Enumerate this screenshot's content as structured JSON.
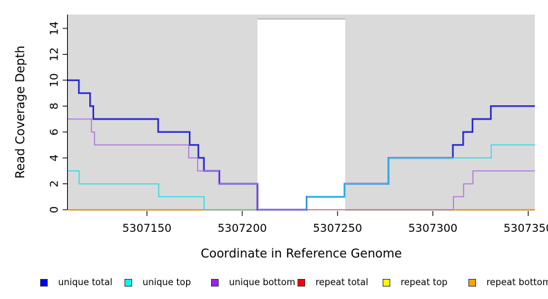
{
  "chart_data": {
    "type": "line",
    "subtype": "step-coverage",
    "title": "",
    "xlabel": "Coordinate in Reference Genome",
    "ylabel": "Read Coverage Depth",
    "xlim": [
      5307108.5,
      5307353.5
    ],
    "ylim": [
      0,
      15.07
    ],
    "x_ticks": [
      5307150,
      5307200,
      5307250,
      5307300,
      5307350
    ],
    "y_ticks": [
      0,
      2,
      4,
      6,
      8,
      10,
      12,
      14
    ],
    "grid": false,
    "legend_position": "bottom",
    "panel_bg": "#dadada",
    "axis_color": "#000000",
    "gap_region": {
      "x0": 5307208,
      "x1": 5307254,
      "fill": "#ffffff",
      "top_line_color": "#a6a6a6"
    },
    "legend": [
      {
        "label": "unique total",
        "color": "#0000f0"
      },
      {
        "label": "unique top",
        "color": "#00f5ff"
      },
      {
        "label": "unique bottom",
        "color": "#a21ff0"
      },
      {
        "label": "repeat total",
        "color": "#ff0000"
      },
      {
        "label": "repeat top",
        "color": "#fff600"
      },
      {
        "label": "repeat bottom",
        "color": "#ffa300"
      }
    ],
    "series": [
      {
        "name": "repeat-bottom-left",
        "legend": "repeat bottom",
        "color": "#ff9e00",
        "width": 2,
        "points": [
          [
            5307108.5,
            0
          ],
          [
            5307180,
            0
          ]
        ]
      },
      {
        "name": "baseline-green-segment",
        "legend": null,
        "color": "#5ec463",
        "width": 1.4,
        "points": [
          [
            5307180,
            0
          ],
          [
            5307208,
            0
          ]
        ]
      },
      {
        "name": "repeat-total-segment",
        "legend": "repeat total",
        "color": "#d4627a",
        "width": 1.4,
        "points": [
          [
            5307234,
            0
          ],
          [
            5307310.5,
            0
          ]
        ]
      },
      {
        "name": "repeat-bottom-right",
        "legend": "repeat bottom",
        "color": "#ff9e00",
        "width": 2,
        "points": [
          [
            5307310.5,
            0
          ],
          [
            5307353.5,
            0
          ]
        ]
      },
      {
        "name": "unique-total",
        "legend": "unique total",
        "color": "#2929d4",
        "width": 2.4,
        "points": [
          [
            5307108.5,
            10
          ],
          [
            5307114.3,
            10
          ],
          [
            5307114.3,
            9
          ],
          [
            5307120.2,
            9
          ],
          [
            5307120.2,
            8
          ],
          [
            5307121.9,
            8
          ],
          [
            5307121.9,
            7
          ],
          [
            5307155.9,
            7
          ],
          [
            5307155.9,
            6
          ],
          [
            5307172.4,
            6
          ],
          [
            5307172.4,
            5
          ],
          [
            5307177,
            5
          ],
          [
            5307177,
            4
          ],
          [
            5307179.9,
            4
          ],
          [
            5307179.9,
            3
          ],
          [
            5307188,
            3
          ],
          [
            5307188,
            2
          ],
          [
            5307208,
            2
          ],
          [
            5307208,
            0
          ],
          [
            5307233.8,
            0
          ],
          [
            5307233.8,
            1
          ],
          [
            5307253.7,
            1
          ],
          [
            5307253.7,
            2
          ],
          [
            5307276.8,
            2
          ],
          [
            5307276.8,
            4
          ],
          [
            5307310.5,
            4
          ],
          [
            5307310.5,
            5
          ],
          [
            5307315.9,
            5
          ],
          [
            5307315.9,
            6
          ],
          [
            5307320.8,
            6
          ],
          [
            5307320.8,
            7
          ],
          [
            5307330.4,
            7
          ],
          [
            5307330.4,
            8
          ],
          [
            5307353.5,
            8
          ]
        ]
      },
      {
        "name": "unique-top-left",
        "legend": "unique top",
        "color": "#2fdce8",
        "width": 1.5,
        "points": [
          [
            5307108.5,
            3
          ],
          [
            5307114.4,
            3
          ],
          [
            5307114.4,
            2
          ],
          [
            5307156.2,
            2
          ],
          [
            5307156.2,
            1
          ],
          [
            5307180,
            1
          ],
          [
            5307180,
            0
          ]
        ]
      },
      {
        "name": "unique-top-right",
        "legend": "unique top",
        "color": "#2fdce8",
        "width": 1.5,
        "points": [
          [
            5307233.9,
            0
          ],
          [
            5307233.9,
            1
          ],
          [
            5307253.8,
            1
          ],
          [
            5307253.8,
            2
          ],
          [
            5307276.9,
            2
          ],
          [
            5307276.9,
            4
          ],
          [
            5307330.6,
            4
          ],
          [
            5307330.6,
            5
          ],
          [
            5307353.5,
            5
          ]
        ]
      },
      {
        "name": "unique-bottom-left",
        "legend": "unique bottom",
        "color": "#b175e0",
        "width": 1.5,
        "points": [
          [
            5307108.5,
            7
          ],
          [
            5307120.9,
            7
          ],
          [
            5307120.9,
            6
          ],
          [
            5307122.5,
            6
          ],
          [
            5307122.5,
            5
          ],
          [
            5307171.9,
            5
          ],
          [
            5307171.9,
            4
          ],
          [
            5307176.6,
            4
          ],
          [
            5307176.6,
            3
          ],
          [
            5307187.6,
            3
          ],
          [
            5307187.6,
            2
          ],
          [
            5307208.3,
            2
          ],
          [
            5307208.3,
            0
          ],
          [
            5307233.8,
            0
          ]
        ]
      },
      {
        "name": "unique-bottom-right",
        "legend": "unique bottom",
        "color": "#b175e0",
        "width": 1.5,
        "points": [
          [
            5307310.8,
            0
          ],
          [
            5307310.8,
            1
          ],
          [
            5307316.1,
            1
          ],
          [
            5307316.1,
            2
          ],
          [
            5307321,
            2
          ],
          [
            5307321,
            3
          ],
          [
            5307353.5,
            3
          ]
        ]
      }
    ]
  }
}
